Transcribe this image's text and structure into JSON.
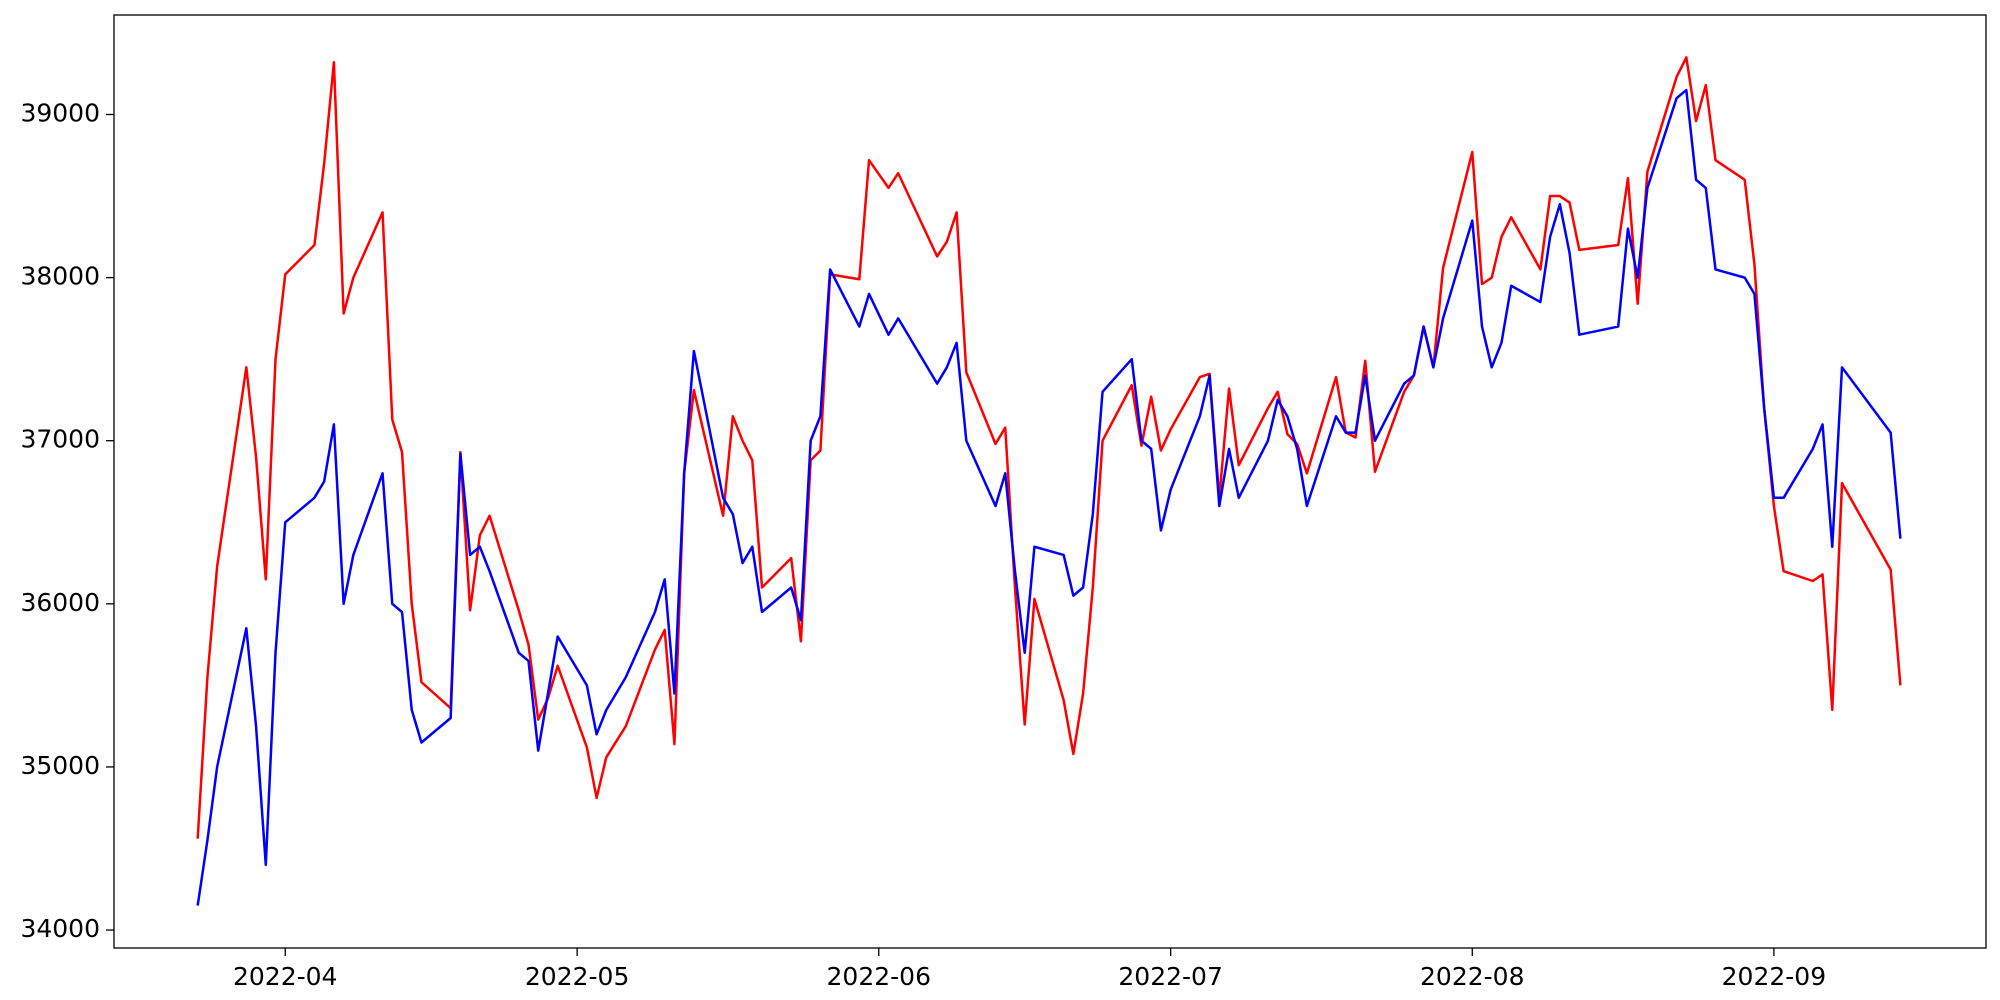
{
  "chart_data": {
    "type": "line",
    "x": [
      19074,
      19075,
      19076,
      19079,
      19080,
      19081,
      19082,
      19083,
      19086,
      19087,
      19088,
      19089,
      19090,
      19093,
      19094,
      19095,
      19096,
      19097,
      19100,
      19101,
      19102,
      19103,
      19104,
      19107,
      19108,
      19109,
      19110,
      19111,
      19114,
      19115,
      19116,
      19118,
      19121,
      19122,
      19123,
      19124,
      19125,
      19128,
      19129,
      19130,
      19131,
      19132,
      19135,
      19136,
      19137,
      19138,
      19139,
      19142,
      19143,
      19145,
      19146,
      19150,
      19151,
      19152,
      19153,
      19156,
      19157,
      19158,
      19159,
      19160,
      19163,
      19164,
      19165,
      19166,
      19167,
      19170,
      19171,
      19172,
      19173,
      19174,
      19177,
      19178,
      19179,
      19180,
      19181,
      19184,
      19185,
      19186,
      19187,
      19188,
      19191,
      19192,
      19193,
      19194,
      19195,
      19198,
      19199,
      19200,
      19201,
      19202,
      19205,
      19206,
      19207,
      19208,
      19209,
      19212,
      19213,
      19214,
      19215,
      19216,
      19220,
      19221,
      19222,
      19223,
      19226,
      19227,
      19228,
      19229,
      19230,
      19233,
      19234,
      19235,
      19236,
      19237,
      19240,
      19241,
      19242,
      19243,
      19248,
      19249
    ],
    "series": [
      {
        "color": "#ff0000",
        "values": [
          34560,
          35550,
          36230,
          37450,
          36900,
          36150,
          37500,
          38020,
          38200,
          38700,
          39320,
          37780,
          38000,
          38400,
          37130,
          36930,
          36000,
          35520,
          35360,
          36930,
          35960,
          36420,
          36540,
          35960,
          35750,
          35290,
          35420,
          35620,
          35120,
          34810,
          35060,
          35250,
          35720,
          35840,
          35140,
          36800,
          37310,
          36540,
          37150,
          37000,
          36880,
          36100,
          36280,
          35770,
          36880,
          36940,
          38020,
          37990,
          38720,
          38550,
          38640,
          38130,
          38220,
          38400,
          37420,
          36980,
          37080,
          36100,
          35260,
          36030,
          35410,
          35080,
          35450,
          36100,
          37000,
          37340,
          36970,
          37270,
          36940,
          37070,
          37390,
          37410,
          36650,
          37320,
          36850,
          37200,
          37300,
          37040,
          36980,
          36800,
          37390,
          37050,
          37020,
          37490,
          36810,
          37300,
          37400,
          37700,
          37450,
          38060,
          38770,
          37960,
          38000,
          38250,
          38370,
          38050,
          38500,
          38500,
          38460,
          38170,
          38200,
          38610,
          37840,
          38650,
          39230,
          39350,
          38960,
          39180,
          38720,
          38600,
          38080,
          37200,
          36600,
          36200,
          36140,
          36180,
          35350,
          36740,
          36210,
          35500
        ]
      },
      {
        "color": "#0000ff",
        "values": [
          34150,
          34550,
          35000,
          35850,
          35250,
          34400,
          35700,
          36500,
          36650,
          36750,
          37100,
          36000,
          36300,
          36800,
          36000,
          35950,
          35350,
          35150,
          35300,
          36920,
          36300,
          36350,
          36200,
          35700,
          35650,
          35100,
          35450,
          35800,
          35500,
          35200,
          35350,
          35550,
          35950,
          36150,
          35450,
          36800,
          37550,
          36650,
          36550,
          36250,
          36350,
          35950,
          36100,
          35900,
          37000,
          37150,
          38050,
          37700,
          37900,
          37650,
          37750,
          37350,
          37450,
          37600,
          37000,
          36600,
          36800,
          36200,
          35700,
          36350,
          36300,
          36050,
          36100,
          36550,
          37300,
          37500,
          37000,
          36950,
          36450,
          36700,
          37150,
          37400,
          36600,
          36950,
          36650,
          37000,
          37250,
          37150,
          36950,
          36600,
          37150,
          37050,
          37050,
          37400,
          37000,
          37350,
          37400,
          37700,
          37450,
          37750,
          38350,
          37700,
          37450,
          37600,
          37950,
          37850,
          38250,
          38450,
          38150,
          37650,
          37700,
          38300,
          38000,
          38550,
          39100,
          39150,
          38600,
          38550,
          38050,
          38000,
          37900,
          37200,
          36650,
          36650,
          36950,
          37100,
          36350,
          37450,
          37050,
          36400
        ]
      }
    ],
    "xlim": [
      19065.4,
      19257.8
    ],
    "xticks": [
      {
        "value": 19083,
        "label": "2022-04"
      },
      {
        "value": 19113,
        "label": "2022-05"
      },
      {
        "value": 19144,
        "label": "2022-06"
      },
      {
        "value": 19174,
        "label": "2022-07"
      },
      {
        "value": 19205,
        "label": "2022-08"
      },
      {
        "value": 19236,
        "label": "2022-09"
      }
    ],
    "ylim": [
      33890,
      39610
    ],
    "yticks": [
      34000,
      35000,
      36000,
      37000,
      38000,
      39000
    ]
  }
}
